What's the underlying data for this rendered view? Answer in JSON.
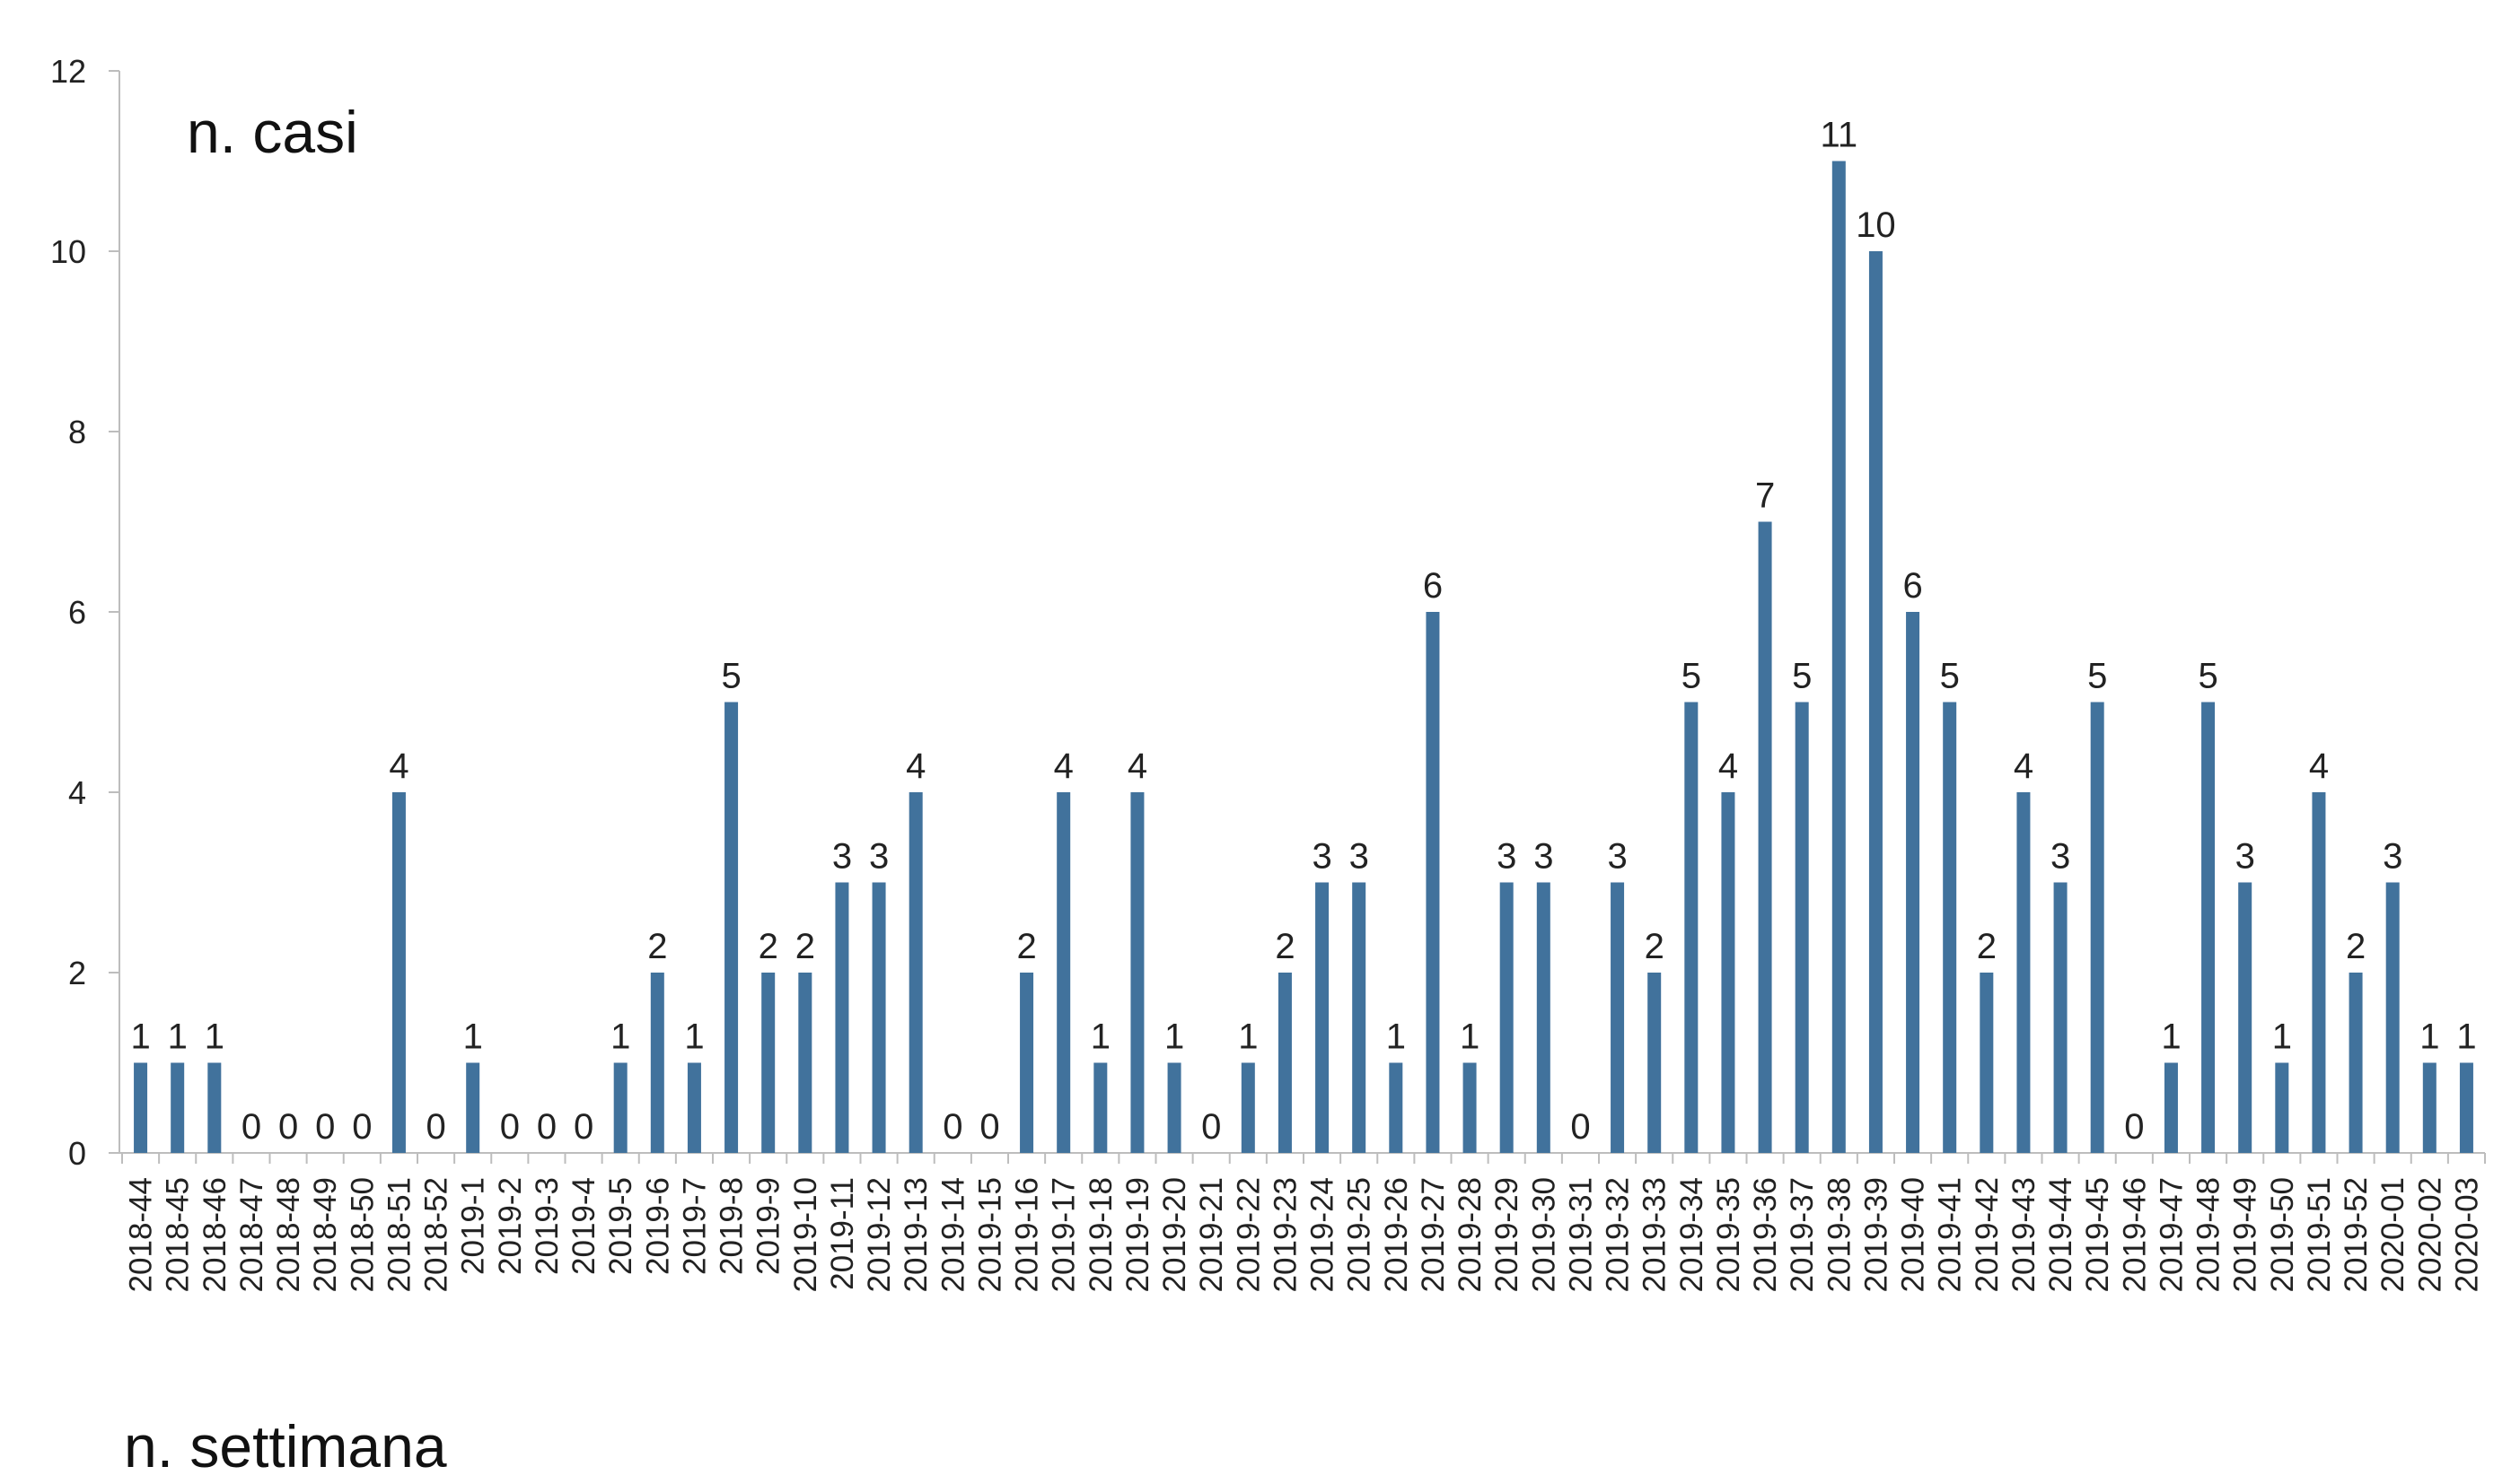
{
  "chart_data": {
    "type": "bar",
    "ylabel": "n. casi",
    "xlabel": "n. settimana",
    "ylim": [
      0,
      12
    ],
    "yticks": [
      0,
      2,
      4,
      6,
      8,
      10,
      12
    ],
    "grid": false,
    "legend": "none",
    "bar_color": "#41729C",
    "categories": [
      "2018-44",
      "2018-45",
      "2018-46",
      "2018-47",
      "2018-48",
      "2018-49",
      "2018-50",
      "2018-51",
      "2018-52",
      "2019-1",
      "2019-2",
      "2019-3",
      "2019-4",
      "2019-5",
      "2019-6",
      "2019-7",
      "2019-8",
      "2019-9",
      "2019-10",
      "2019-11",
      "2019-12",
      "2019-13",
      "2019-14",
      "2019-15",
      "2019-16",
      "2019-17",
      "2019-18",
      "2019-19",
      "2019-20",
      "2019-21",
      "2019-22",
      "2019-23",
      "2019-24",
      "2019-25",
      "2019-26",
      "2019-27",
      "2019-28",
      "2019-29",
      "2019-30",
      "2019-31",
      "2019-32",
      "2019-33",
      "2019-34",
      "2019-35",
      "2019-36",
      "2019-37",
      "2019-38",
      "2019-39",
      "2019-40",
      "2019-41",
      "2019-42",
      "2019-43",
      "2019-44",
      "2019-45",
      "2019-46",
      "2019-47",
      "2019-48",
      "2019-49",
      "2019-50",
      "2019-51",
      "2019-52",
      "2020-01",
      "2020-02",
      "2020-03"
    ],
    "values": [
      1,
      1,
      1,
      0,
      0,
      0,
      0,
      4,
      0,
      1,
      0,
      0,
      0,
      1,
      2,
      1,
      5,
      2,
      2,
      3,
      3,
      4,
      0,
      0,
      2,
      4,
      1,
      4,
      1,
      0,
      1,
      2,
      3,
      3,
      1,
      6,
      1,
      3,
      3,
      0,
      3,
      2,
      5,
      4,
      7,
      5,
      11,
      10,
      6,
      5,
      2,
      4,
      3,
      5,
      0,
      1,
      5,
      3,
      1,
      4,
      2,
      3,
      1,
      1
    ]
  }
}
